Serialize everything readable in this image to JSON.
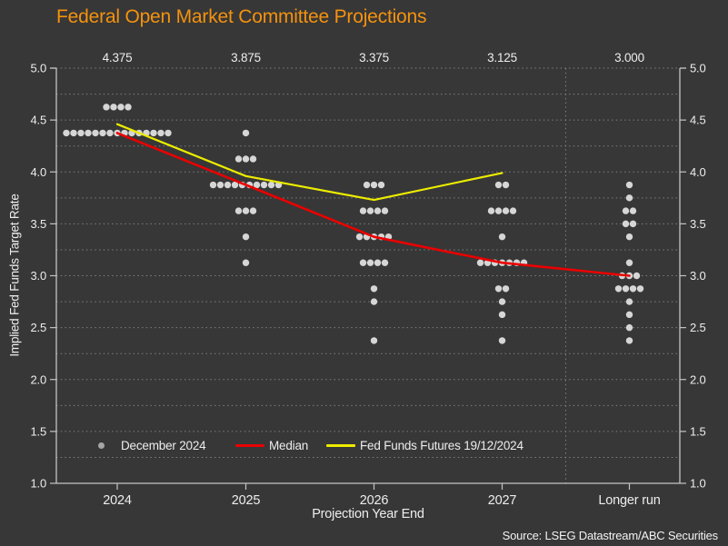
{
  "title": "Federal Open Market Committee Projections",
  "source": "Source: LSEG Datastream/ABC Securities",
  "colors": {
    "background": "#373737",
    "title": "#F5920E",
    "text": "#EDEDED",
    "axis": "#C4C4C4",
    "grid": "#8C8C8C",
    "dot": "#D6D6D6",
    "median_line": "#EA0000",
    "futures_line": "#ECEC00",
    "legend_dot": "#A6A6A6"
  },
  "legend": {
    "items": [
      {
        "label": "December 2024",
        "marker": "dot"
      },
      {
        "label": "Median",
        "marker": "red-line"
      },
      {
        "label": "Fed Funds Futures 19/12/2024",
        "marker": "yellow-line"
      }
    ]
  },
  "chart_data": {
    "type": "scatter",
    "subtype": "fomc-dot-plot",
    "title": "Federal Open Market Committee Projections",
    "xlabel": "Projection Year End",
    "ylabel": "Implied Fed Funds Target Rate",
    "ylim": [
      1.0,
      5.0
    ],
    "grid": "horizontal dotted every 0.25, vertical dotted separator before Longer run",
    "legend_position": "bottom-inside",
    "categories": [
      "2024",
      "2025",
      "2026",
      "2027",
      "Longer run"
    ],
    "median_labels": [
      "4.375",
      "3.875",
      "3.375",
      "3.125",
      "3.000"
    ],
    "y_tick_labels": [
      "5.0",
      "4.5",
      "4.0",
      "3.5",
      "3.0",
      "2.5",
      "2.0",
      "1.5",
      "1.0"
    ],
    "dots": [
      {
        "category": "2024",
        "points": [
          {
            "rate": 4.625,
            "count": 4
          },
          {
            "rate": 4.375,
            "count": 15
          }
        ]
      },
      {
        "category": "2025",
        "points": [
          {
            "rate": 4.375,
            "count": 1
          },
          {
            "rate": 4.125,
            "count": 3
          },
          {
            "rate": 3.875,
            "count": 10
          },
          {
            "rate": 3.625,
            "count": 3
          },
          {
            "rate": 3.375,
            "count": 1
          },
          {
            "rate": 3.125,
            "count": 1
          }
        ]
      },
      {
        "category": "2026",
        "points": [
          {
            "rate": 3.875,
            "count": 3
          },
          {
            "rate": 3.625,
            "count": 4
          },
          {
            "rate": 3.375,
            "count": 5
          },
          {
            "rate": 3.125,
            "count": 4
          },
          {
            "rate": 2.875,
            "count": 1
          },
          {
            "rate": 2.75,
            "count": 1
          },
          {
            "rate": 2.375,
            "count": 1
          }
        ]
      },
      {
        "category": "2027",
        "points": [
          {
            "rate": 3.875,
            "count": 2
          },
          {
            "rate": 3.625,
            "count": 4
          },
          {
            "rate": 3.375,
            "count": 1
          },
          {
            "rate": 3.125,
            "count": 7
          },
          {
            "rate": 2.875,
            "count": 2
          },
          {
            "rate": 2.75,
            "count": 1
          },
          {
            "rate": 2.625,
            "count": 1
          },
          {
            "rate": 2.375,
            "count": 1
          }
        ]
      },
      {
        "category": "Longer run",
        "points": [
          {
            "rate": 3.875,
            "count": 1
          },
          {
            "rate": 3.75,
            "count": 1
          },
          {
            "rate": 3.625,
            "count": 2
          },
          {
            "rate": 3.5,
            "count": 2
          },
          {
            "rate": 3.375,
            "count": 1
          },
          {
            "rate": 3.125,
            "count": 1
          },
          {
            "rate": 3.0,
            "count": 3
          },
          {
            "rate": 2.875,
            "count": 4
          },
          {
            "rate": 2.75,
            "count": 1
          },
          {
            "rate": 2.625,
            "count": 1
          },
          {
            "rate": 2.5,
            "count": 1
          },
          {
            "rate": 2.375,
            "count": 1
          }
        ]
      }
    ],
    "series": [
      {
        "name": "Median",
        "type": "line",
        "color": "#EA0000",
        "x": [
          "2024",
          "2025",
          "2026",
          "2027",
          "Longer run"
        ],
        "values": [
          4.375,
          3.875,
          3.375,
          3.125,
          3.0
        ]
      },
      {
        "name": "Fed Funds Futures 19/12/2024",
        "type": "line",
        "color": "#ECEC00",
        "x": [
          "2024",
          "2025",
          "2026",
          "2027"
        ],
        "values": [
          4.46,
          3.96,
          3.73,
          3.99
        ]
      }
    ]
  }
}
